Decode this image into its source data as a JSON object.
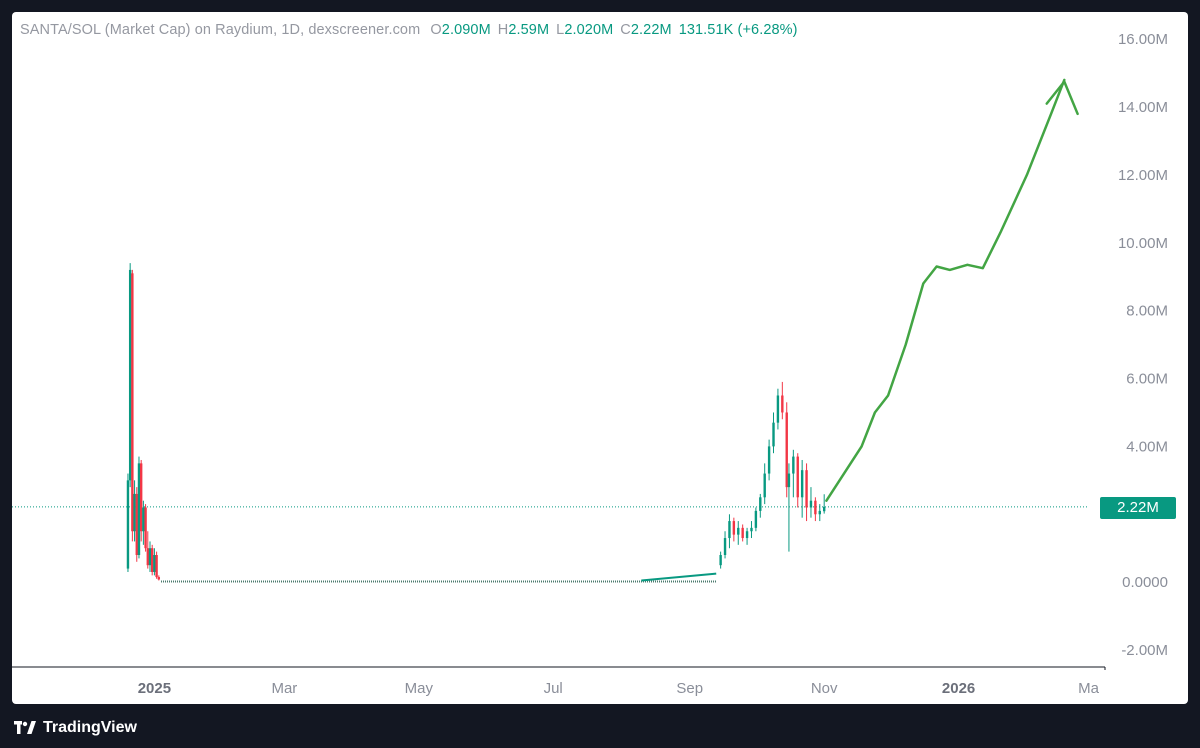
{
  "header": {
    "title": "SANTA/SOL (Market Cap) on Raydium, 1D, dexscreener.com",
    "open_label": "O",
    "open": "2.090M",
    "high_label": "H",
    "high": "2.59M",
    "low_label": "L",
    "low": "2.020M",
    "close_label": "C",
    "close": "2.22M",
    "change": "131.51K (+6.28%)"
  },
  "price_badge": "2.22M",
  "footer": {
    "brand": "TradingView"
  },
  "colors": {
    "up": "#089981",
    "down": "#f23645",
    "projection": "#43a544",
    "axis_text": "#8a8e99"
  },
  "chart_data": {
    "type": "candlestick",
    "y_axis": {
      "ticks": [
        "16.00M",
        "14.00M",
        "12.00M",
        "10.00M",
        "8.00M",
        "6.00M",
        "4.00M",
        "2.22M",
        "0.0000",
        "-2.00M"
      ],
      "tick_values": [
        16,
        14,
        12,
        10,
        8,
        6,
        4,
        0,
        -2
      ],
      "tick_labels": [
        "16.00M",
        "14.00M",
        "12.00M",
        "10.00M",
        "8.00M",
        "6.00M",
        "4.00M",
        "0.0000",
        "-2.00M"
      ],
      "ylim": [
        -2.5,
        16.8
      ],
      "unit": "M"
    },
    "x_axis": {
      "labels": [
        "2025",
        "Mar",
        "May",
        "Jul",
        "Sep",
        "Nov",
        "2026",
        "Ma"
      ],
      "bold": [
        true,
        false,
        false,
        false,
        false,
        false,
        true,
        false
      ],
      "label_dates": [
        "2025-01-01",
        "2025-03-01",
        "2025-05-01",
        "2025-07-01",
        "2025-09-01",
        "2025-11-01",
        "2026-01-01",
        "2026-03-01"
      ]
    },
    "current_price": 2.22,
    "candles": [
      [
        "2024-12-20",
        0.4,
        3.2,
        0.3,
        3.0
      ],
      [
        "2024-12-21",
        3.0,
        9.4,
        2.8,
        9.2
      ],
      [
        "2024-12-22",
        9.1,
        9.2,
        1.2,
        1.5
      ],
      [
        "2024-12-23",
        1.5,
        3.0,
        1.2,
        2.6
      ],
      [
        "2024-12-24",
        2.6,
        2.8,
        0.6,
        0.8
      ],
      [
        "2024-12-25",
        0.8,
        3.7,
        0.7,
        3.5
      ],
      [
        "2024-12-26",
        3.5,
        3.6,
        1.2,
        1.5
      ],
      [
        "2024-12-27",
        1.5,
        2.4,
        1.1,
        2.2
      ],
      [
        "2024-12-28",
        2.2,
        2.3,
        0.9,
        1.0
      ],
      [
        "2024-12-29",
        1.0,
        1.5,
        0.4,
        0.5
      ],
      [
        "2024-12-30",
        0.5,
        1.2,
        0.3,
        1.0
      ],
      [
        "2024-12-31",
        1.0,
        1.1,
        0.2,
        0.3
      ],
      [
        "2025-01-01",
        0.3,
        1.0,
        0.2,
        0.8
      ],
      [
        "2025-01-02",
        0.8,
        0.9,
        0.1,
        0.15
      ],
      [
        "2025-01-03",
        0.15,
        0.2,
        0.05,
        0.08
      ],
      [
        "2025-09-15",
        0.5,
        0.9,
        0.4,
        0.8
      ],
      [
        "2025-09-17",
        0.8,
        1.5,
        0.7,
        1.3
      ],
      [
        "2025-09-19",
        1.3,
        2.0,
        1.0,
        1.8
      ],
      [
        "2025-09-21",
        1.8,
        1.9,
        1.2,
        1.4
      ],
      [
        "2025-09-23",
        1.4,
        1.8,
        1.1,
        1.6
      ],
      [
        "2025-09-25",
        1.6,
        1.7,
        1.2,
        1.3
      ],
      [
        "2025-09-27",
        1.3,
        1.6,
        1.1,
        1.5
      ],
      [
        "2025-09-29",
        1.5,
        1.8,
        1.3,
        1.6
      ],
      [
        "2025-10-01",
        1.6,
        2.2,
        1.5,
        2.1
      ],
      [
        "2025-10-03",
        2.1,
        2.6,
        1.9,
        2.5
      ],
      [
        "2025-10-05",
        2.5,
        3.5,
        2.3,
        3.2
      ],
      [
        "2025-10-07",
        3.2,
        4.2,
        3.0,
        4.0
      ],
      [
        "2025-10-09",
        4.0,
        5.0,
        3.8,
        4.7
      ],
      [
        "2025-10-11",
        4.7,
        5.7,
        4.5,
        5.5
      ],
      [
        "2025-10-13",
        5.5,
        5.9,
        4.8,
        5.0
      ],
      [
        "2025-10-15",
        5.0,
        5.3,
        2.5,
        2.8
      ],
      [
        "2025-10-16",
        2.8,
        3.5,
        0.9,
        3.2
      ],
      [
        "2025-10-18",
        3.2,
        3.9,
        2.5,
        3.7
      ],
      [
        "2025-10-20",
        3.7,
        3.8,
        2.2,
        2.5
      ],
      [
        "2025-10-22",
        2.5,
        3.6,
        1.9,
        3.3
      ],
      [
        "2025-10-24",
        3.3,
        3.5,
        1.8,
        2.2
      ],
      [
        "2025-10-26",
        2.2,
        2.8,
        1.9,
        2.4
      ],
      [
        "2025-10-28",
        2.4,
        2.5,
        1.8,
        2.0
      ],
      [
        "2025-10-30",
        2.0,
        2.3,
        1.8,
        2.1
      ],
      [
        "2025-11-01",
        2.09,
        2.59,
        2.02,
        2.22
      ]
    ],
    "flat_segment": {
      "from": "2025-01-04",
      "to": "2025-09-13",
      "level": 0.02
    },
    "projection_line": [
      [
        "2025-11-02",
        2.4
      ],
      [
        "2025-11-10",
        3.2
      ],
      [
        "2025-11-18",
        4.0
      ],
      [
        "2025-11-24",
        5.0
      ],
      [
        "2025-11-30",
        5.5
      ],
      [
        "2025-12-08",
        7.0
      ],
      [
        "2025-12-16",
        8.8
      ],
      [
        "2025-12-22",
        9.3
      ],
      [
        "2025-12-28",
        9.2
      ],
      [
        "2026-01-05",
        9.35
      ],
      [
        "2026-01-12",
        9.25
      ],
      [
        "2026-01-20",
        10.3
      ],
      [
        "2026-02-01",
        12.0
      ],
      [
        "2026-02-12",
        13.8
      ],
      [
        "2026-02-18",
        14.8
      ]
    ],
    "projection_arrowhead": [
      [
        "2026-02-10",
        14.1
      ],
      [
        "2026-02-18",
        14.75
      ],
      [
        "2026-02-24",
        13.8
      ]
    ]
  }
}
